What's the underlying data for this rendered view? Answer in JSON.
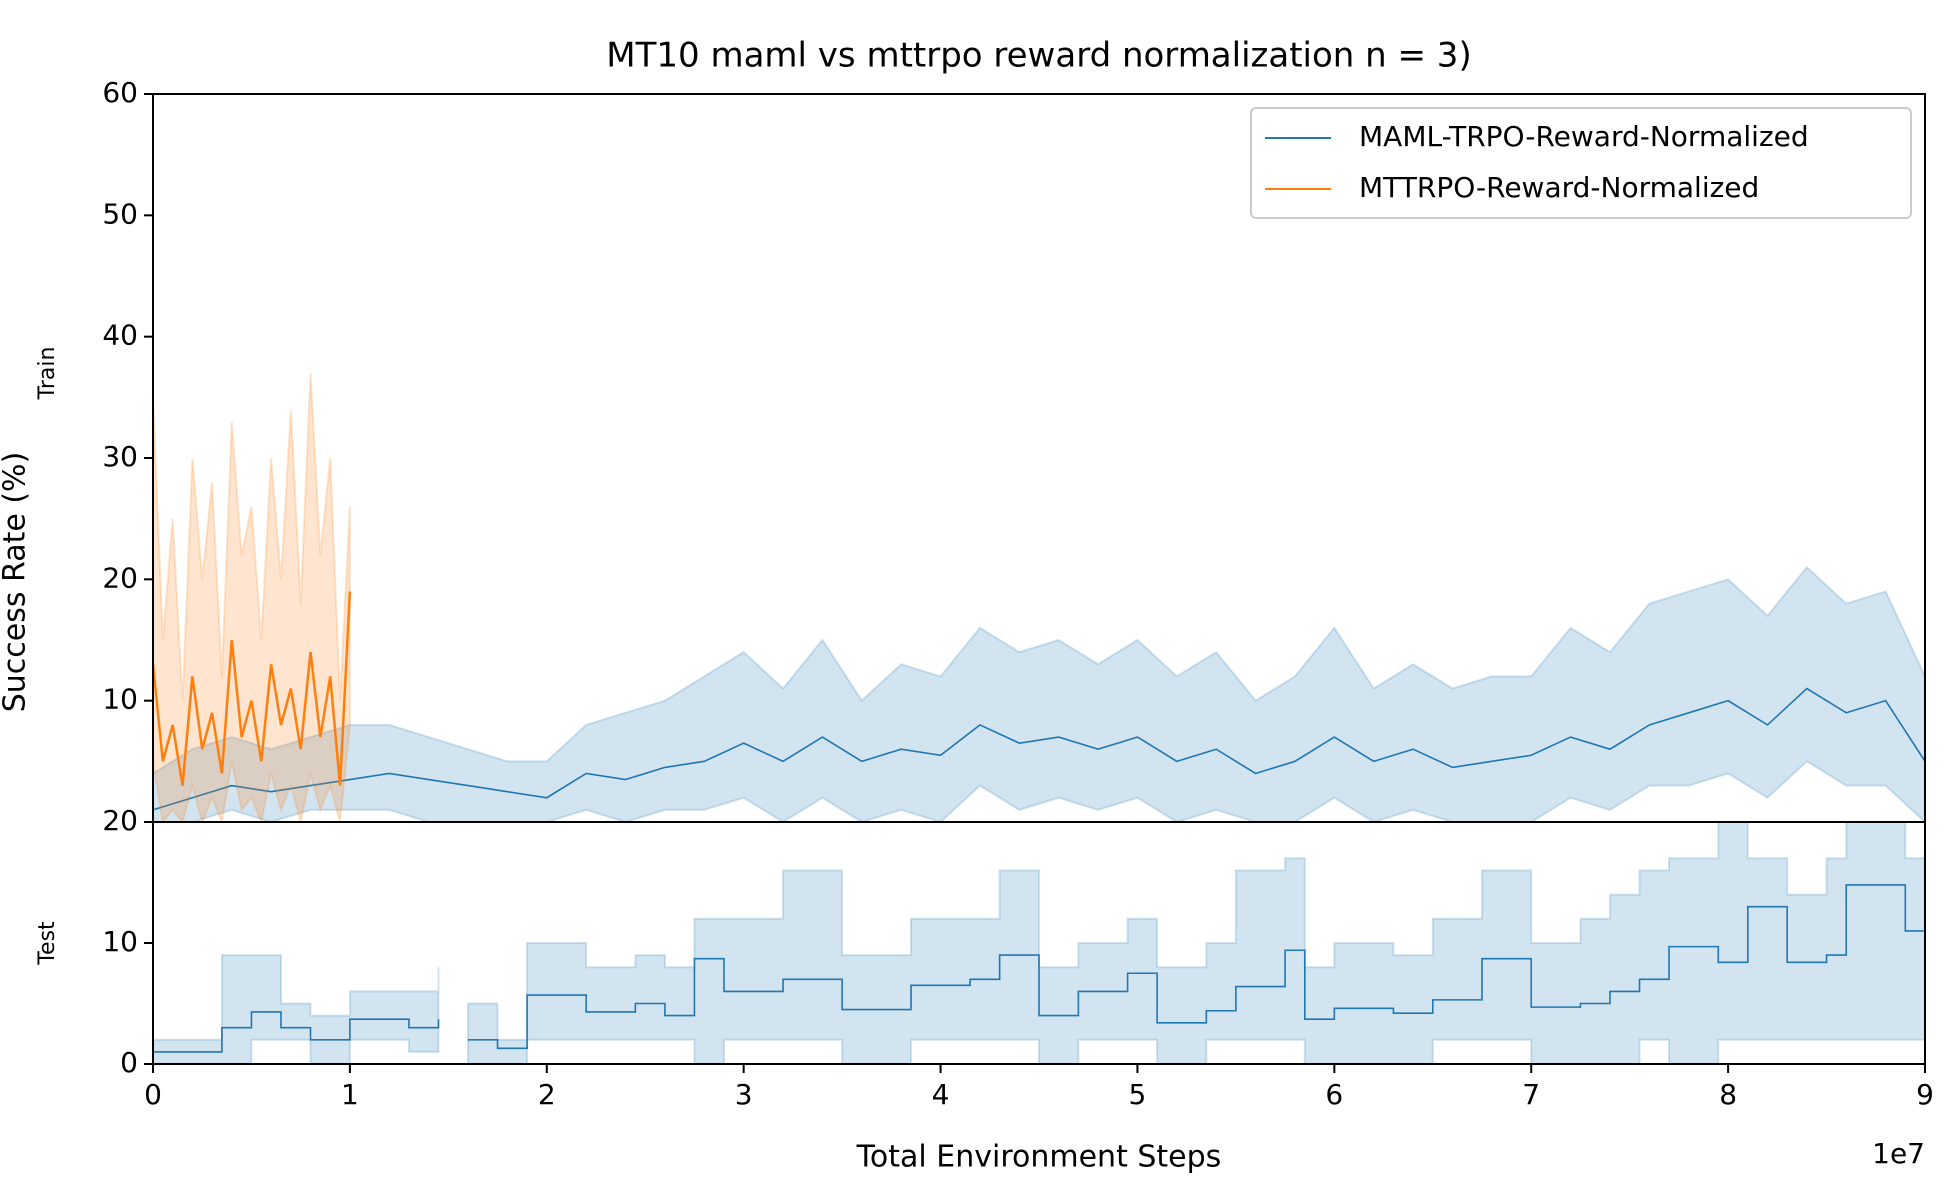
{
  "chart_data": [
    {
      "type": "line",
      "title": "MT10 maml vs mttrpo reward normalization n = 3)",
      "ylabel": "Success Rate (%)",
      "panel_label": "Train",
      "xlim": [
        0,
        9
      ],
      "ylim": [
        0,
        60
      ],
      "yticks": [
        10,
        20,
        30,
        40,
        50,
        60
      ],
      "legend": "upper right",
      "series": [
        {
          "name": "MAML-TRPO-Reward-Normalized",
          "color": "#1f77b4",
          "x": [
            0,
            0.2,
            0.4,
            0.6,
            0.8,
            1.0,
            1.2,
            1.4,
            1.6,
            1.8,
            2.0,
            2.2,
            2.4,
            2.6,
            2.8,
            3.0,
            3.2,
            3.4,
            3.6,
            3.8,
            4.0,
            4.2,
            4.4,
            4.6,
            4.8,
            5.0,
            5.2,
            5.4,
            5.6,
            5.8,
            6.0,
            6.2,
            6.4,
            6.6,
            6.8,
            7.0,
            7.2,
            7.4,
            7.6,
            7.8,
            8.0,
            8.2,
            8.4,
            8.6,
            8.8,
            9.0
          ],
          "values": [
            1,
            2,
            3,
            2.5,
            3,
            3.5,
            4,
            3.5,
            3,
            2.5,
            2,
            4,
            3.5,
            4.5,
            5,
            6.5,
            5,
            7,
            5,
            6,
            5.5,
            8,
            6.5,
            7,
            6,
            7,
            5,
            6,
            4,
            5,
            7,
            5,
            6,
            4.5,
            5,
            5.5,
            7,
            6,
            8,
            9,
            10,
            8,
            11,
            9,
            10,
            5
          ],
          "lower": [
            0,
            0,
            1,
            0,
            1,
            1,
            1,
            0,
            0,
            0,
            0,
            1,
            0,
            1,
            1,
            2,
            0,
            2,
            0,
            1,
            0,
            3,
            1,
            2,
            1,
            2,
            0,
            1,
            0,
            0,
            2,
            0,
            1,
            0,
            0,
            0,
            2,
            1,
            3,
            3,
            4,
            2,
            5,
            3,
            3,
            0
          ],
          "upper": [
            4,
            6,
            7,
            6,
            7,
            8,
            8,
            7,
            6,
            5,
            5,
            8,
            9,
            10,
            12,
            14,
            11,
            15,
            10,
            13,
            12,
            16,
            14,
            15,
            13,
            15,
            12,
            14,
            10,
            12,
            16,
            11,
            13,
            11,
            12,
            12,
            16,
            14,
            18,
            19,
            20,
            17,
            21,
            18,
            19,
            12
          ]
        },
        {
          "name": "MTTRPO-Reward-Normalized",
          "color": "#ff7f0e",
          "x": [
            0,
            0.05,
            0.1,
            0.15,
            0.2,
            0.25,
            0.3,
            0.35,
            0.4,
            0.45,
            0.5,
            0.55,
            0.6,
            0.65,
            0.7,
            0.75,
            0.8,
            0.85,
            0.9,
            0.95,
            1.0
          ],
          "values": [
            13,
            5,
            8,
            3,
            12,
            6,
            9,
            4,
            15,
            7,
            10,
            5,
            13,
            8,
            11,
            6,
            14,
            7,
            12,
            3,
            19
          ],
          "lower": [
            5,
            0,
            1,
            0,
            3,
            0,
            2,
            0,
            5,
            1,
            2,
            0,
            4,
            1,
            3,
            0,
            4,
            1,
            3,
            0,
            8
          ],
          "upper": [
            35,
            15,
            25,
            10,
            30,
            20,
            28,
            12,
            33,
            22,
            26,
            15,
            30,
            20,
            34,
            18,
            37,
            22,
            30,
            10,
            26
          ]
        }
      ]
    },
    {
      "type": "step",
      "panel_label": "Test",
      "xlabel": "Total Environment Steps",
      "x_offset_label": "1e7",
      "xlim": [
        0,
        9
      ],
      "xticks": [
        0,
        1,
        2,
        3,
        4,
        5,
        6,
        7,
        8,
        9
      ],
      "ylim": [
        0,
        20
      ],
      "yticks": [
        0,
        10,
        20
      ],
      "series": [
        {
          "color": "#1f77b4",
          "x": [
            0,
            0.35,
            0.5,
            0.65,
            0.8,
            1.0,
            1.3,
            1.45,
            1.5,
            1.6,
            1.75,
            1.9,
            2.2,
            2.45,
            2.6,
            2.75,
            2.9,
            3.2,
            3.5,
            3.85,
            4.15,
            4.3,
            4.5,
            4.7,
            4.95,
            5.1,
            5.35,
            5.5,
            5.75,
            5.85,
            6.0,
            6.3,
            6.5,
            6.75,
            7.0,
            7.25,
            7.4,
            7.55,
            7.7,
            7.95,
            8.1,
            8.3,
            8.5,
            8.6,
            8.9,
            9.0
          ],
          "values": [
            1,
            3,
            4.3,
            3,
            2,
            3.7,
            3,
            3.7,
            null,
            2,
            1.3,
            5.7,
            4.3,
            5,
            4,
            8.7,
            6,
            7,
            4.5,
            6.5,
            7,
            9,
            4,
            6,
            7.5,
            3.4,
            4.4,
            6.4,
            9.4,
            3.7,
            4.6,
            4.2,
            5.3,
            8.7,
            4.7,
            5,
            6,
            7,
            9.7,
            8.4,
            13,
            8.4,
            9,
            14.8,
            11,
            5.5
          ],
          "lower": [
            0,
            0,
            2,
            2,
            0,
            2,
            1,
            2,
            null,
            0,
            0,
            2,
            2,
            2,
            2,
            0,
            2,
            2,
            0,
            2,
            2,
            2,
            0,
            2,
            2,
            0,
            2,
            2,
            2,
            0,
            0,
            0,
            2,
            2,
            0,
            0,
            0,
            2,
            0,
            2,
            2,
            2,
            2,
            2,
            2,
            0
          ],
          "upper": [
            2,
            9,
            9,
            5,
            4,
            6,
            6,
            8,
            null,
            5,
            2,
            10,
            8,
            9,
            8,
            12,
            12,
            16,
            9,
            12,
            12,
            16,
            8,
            10,
            12,
            8,
            10,
            16,
            17,
            8,
            10,
            9,
            12,
            16,
            10,
            12,
            14,
            16,
            17,
            20,
            17,
            14,
            17,
            20,
            17,
            5
          ]
        }
      ]
    }
  ]
}
